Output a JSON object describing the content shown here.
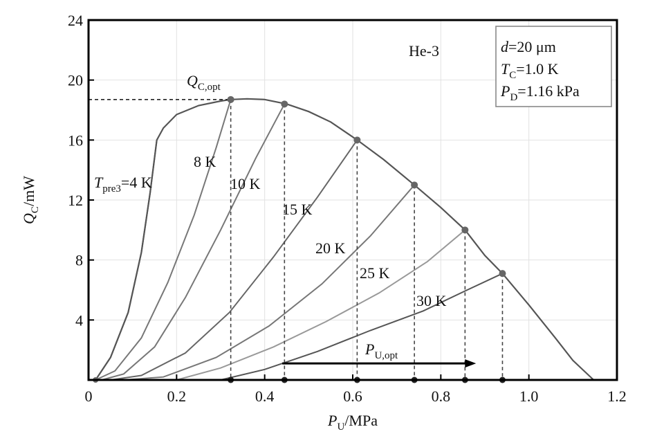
{
  "chart_data": {
    "type": "line",
    "xlabel": {
      "main": "P",
      "sub": "U",
      "tail": "/MPa"
    },
    "ylabel": {
      "main": "Q",
      "sub": "C",
      "tail": "/mW"
    },
    "xlim": [
      0,
      1.2
    ],
    "ylim": [
      0,
      24
    ],
    "x_ticks": [
      0,
      0.2,
      0.4,
      0.6,
      0.8,
      1.0,
      1.2
    ],
    "x_tick_labels": [
      "0",
      "0.2",
      "0.4",
      "0.6",
      "0.8",
      "1.0",
      "1.2"
    ],
    "y_ticks": [
      4,
      8,
      12,
      16,
      20,
      24
    ],
    "y_tick_labels": [
      "4",
      "8",
      "12",
      "16",
      "20",
      "24"
    ],
    "grid": true,
    "fluid_label": "He-3",
    "legend_box": {
      "position": "top-right",
      "lines": [
        {
          "main": "d",
          "sub": "",
          "tail": "=20 μm"
        },
        {
          "main": "T",
          "sub": "C",
          "tail": "=1.0 K"
        },
        {
          "main": "P",
          "sub": "D",
          "tail": "=1.16 kPa"
        }
      ]
    },
    "envelope": {
      "x": [
        0.016,
        0.05,
        0.09,
        0.12,
        0.14,
        0.155,
        0.17,
        0.2,
        0.25,
        0.3,
        0.323,
        0.36,
        0.4,
        0.45,
        0.5,
        0.55,
        0.61,
        0.67,
        0.74,
        0.8,
        0.855,
        0.9,
        0.94,
        1.0,
        1.06,
        1.1,
        1.147
      ],
      "y": [
        0,
        1.5,
        4.5,
        8.5,
        12.5,
        16.0,
        16.8,
        17.7,
        18.3,
        18.6,
        18.7,
        18.75,
        18.7,
        18.4,
        17.9,
        17.2,
        16.0,
        14.7,
        13.0,
        11.5,
        10.0,
        8.3,
        7.1,
        5.0,
        2.8,
        1.3,
        0
      ]
    },
    "series": [
      {
        "name": "T",
        "sub": "pre3",
        "tail": "=4 K",
        "x": [
          0.016,
          0.05,
          0.09,
          0.12,
          0.14,
          0.155
        ],
        "y": [
          0,
          1.5,
          4.5,
          8.5,
          12.5,
          16.0
        ],
        "color": "#555555"
      },
      {
        "name": "8 K",
        "x": [
          0.016,
          0.06,
          0.12,
          0.18,
          0.24,
          0.29,
          0.323
        ],
        "y": [
          0,
          0.6,
          2.8,
          6.5,
          11.0,
          15.5,
          18.7
        ],
        "color": "#777777"
      },
      {
        "name": "10 K",
        "x": [
          0.03,
          0.08,
          0.15,
          0.22,
          0.3,
          0.38,
          0.445
        ],
        "y": [
          0,
          0.4,
          2.2,
          5.5,
          10.0,
          14.8,
          18.4
        ],
        "color": "#777777"
      },
      {
        "name": "15 K",
        "x": [
          0.05,
          0.12,
          0.22,
          0.32,
          0.42,
          0.52,
          0.61
        ],
        "y": [
          0,
          0.3,
          1.8,
          4.5,
          8.2,
          12.2,
          16.0
        ],
        "color": "#666666"
      },
      {
        "name": "20 K",
        "x": [
          0.08,
          0.17,
          0.29,
          0.41,
          0.53,
          0.64,
          0.74
        ],
        "y": [
          0,
          0.2,
          1.5,
          3.6,
          6.4,
          9.6,
          13.0
        ],
        "color": "#777777"
      },
      {
        "name": "25 K",
        "x": [
          0.2,
          0.3,
          0.42,
          0.54,
          0.66,
          0.77,
          0.855
        ],
        "y": [
          0,
          0.8,
          2.2,
          3.9,
          5.8,
          7.9,
          10.0
        ],
        "color": "#999999"
      },
      {
        "name": "30 K",
        "x": [
          0.3,
          0.4,
          0.52,
          0.64,
          0.76,
          0.86,
          0.94
        ],
        "y": [
          0,
          0.7,
          1.9,
          3.3,
          4.6,
          6.0,
          7.1
        ],
        "color": "#555555"
      }
    ],
    "optimum_points": {
      "x": [
        0.323,
        0.445,
        0.61,
        0.74,
        0.855,
        0.94
      ],
      "y": [
        18.7,
        18.4,
        16.0,
        13.0,
        10.0,
        7.1
      ]
    },
    "annotations": {
      "q_opt": {
        "main": "Q",
        "sub": "C,opt"
      },
      "p_opt": {
        "main": "P",
        "sub": "U,opt"
      },
      "arrow_x": [
        0.44,
        0.88
      ],
      "arrow_y": 1.1
    }
  }
}
